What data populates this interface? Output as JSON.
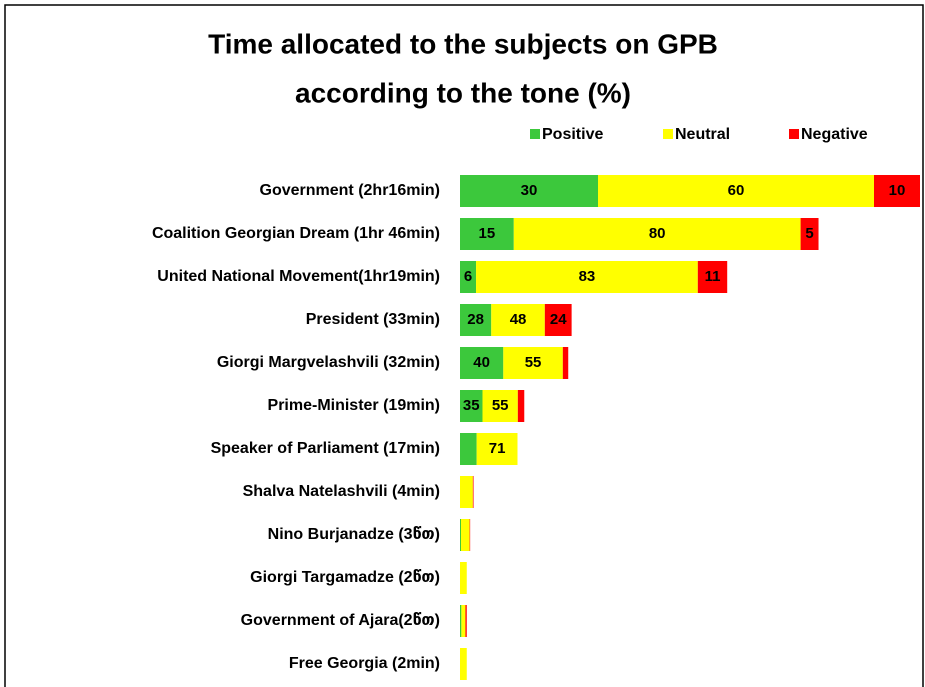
{
  "chart_data": {
    "type": "bar",
    "title_lines": [
      "Time allocated to the subjects on GPB",
      "according to the tone (%)"
    ],
    "categories": [
      "Government (2hr16min)",
      "Coalition Georgian Dream (1hr 46min)",
      "United National Movement(1hr19min)",
      "President (33min)",
      "Giorgi Margvelashvili (32min)",
      "Prime-Minister (19min)",
      "Speaker of Parliament (17min)",
      "Shalva Natelashvili (4min)",
      "Nino Burjanadze (3წთ)",
      "Giorgi Targamadze (2წთ)",
      "Government of Ajara(2წთ)",
      "Free Georgia (2min)"
    ],
    "durations": [
      136,
      106,
      79,
      33,
      32,
      19,
      17,
      4,
      3,
      2,
      2,
      2
    ],
    "series": [
      {
        "name": "Positive",
        "color": "#3cc83c",
        "values": [
          30,
          15,
          6,
          28,
          40,
          35,
          29,
          0,
          10,
          0,
          20,
          0
        ],
        "value_labels": [
          "30",
          "15",
          "6",
          "28",
          "40",
          "35",
          null,
          null,
          null,
          null,
          null,
          null
        ]
      },
      {
        "name": "Neutral",
        "color": "#ffff00",
        "values": [
          60,
          80,
          83,
          48,
          55,
          55,
          71,
          95,
          85,
          100,
          60,
          100
        ],
        "value_labels": [
          "60",
          "80",
          "83",
          "48",
          "55",
          "55",
          "71",
          null,
          null,
          null,
          null,
          null
        ]
      },
      {
        "name": "Negative",
        "color": "#ff0000",
        "values": [
          10,
          5,
          11,
          24,
          5,
          10,
          0,
          5,
          5,
          0,
          20,
          0
        ],
        "value_labels": [
          "10",
          "5",
          "11",
          "24",
          null,
          null,
          null,
          null,
          null,
          null,
          null,
          null
        ]
      }
    ]
  }
}
